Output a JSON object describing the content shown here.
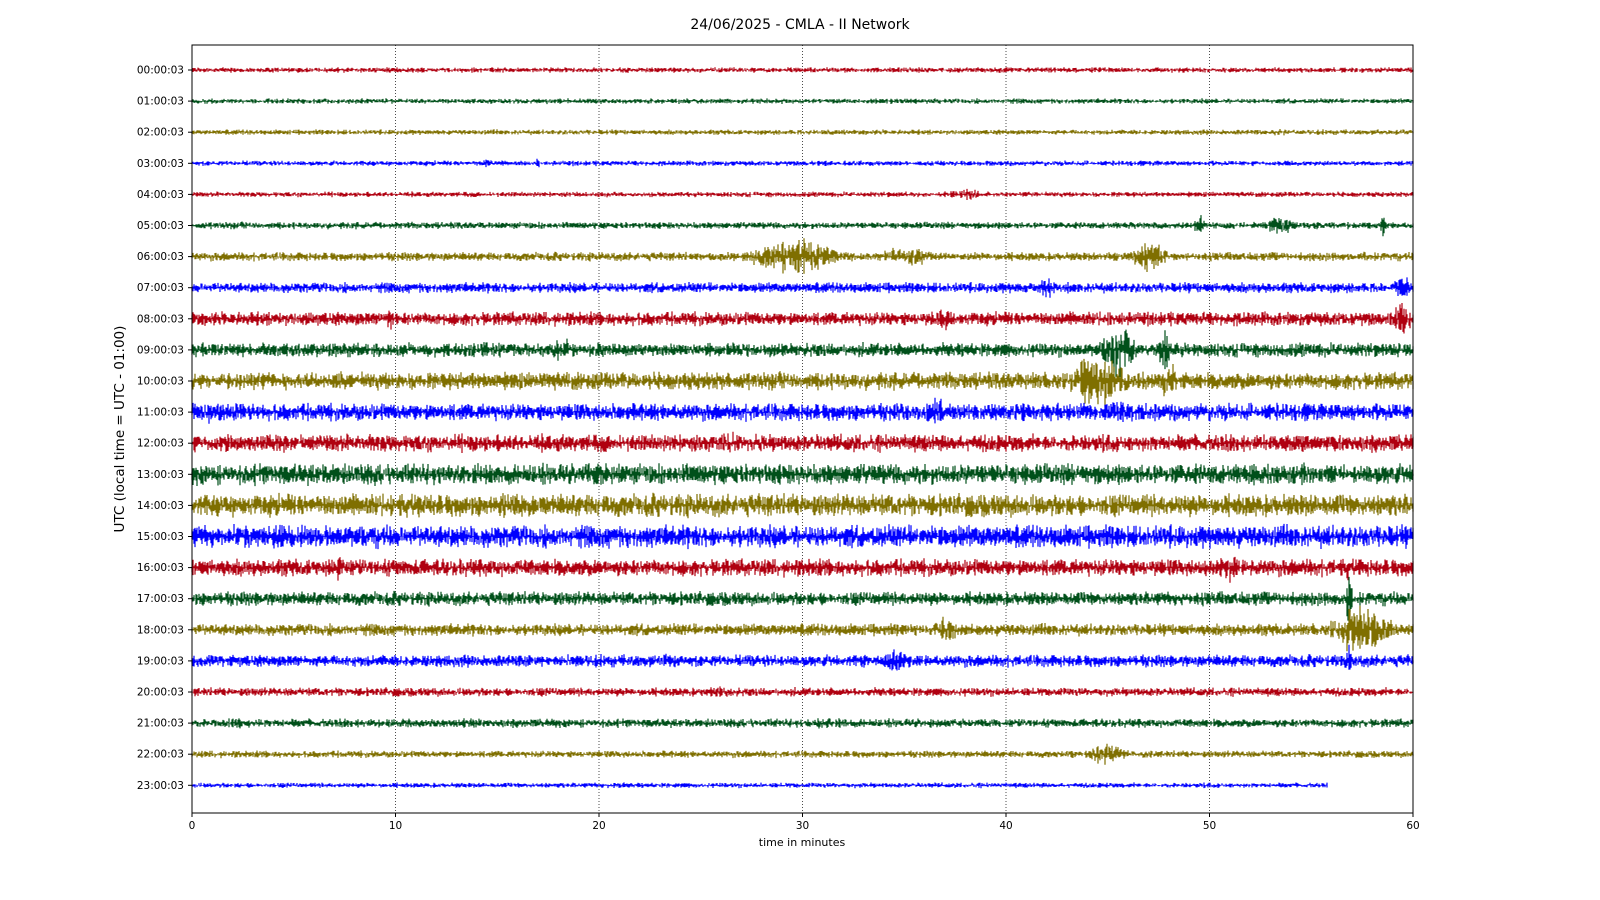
{
  "chart_data": {
    "type": "line",
    "title": "24/06/2025 - CMLA - II Network",
    "xlabel": "time in minutes",
    "ylabel": "UTC (local time = UTC - 01:00)",
    "xlim": [
      0,
      60
    ],
    "xticks": [
      0,
      10,
      20,
      30,
      40,
      50,
      60
    ],
    "grid": "vertical dotted lines at x = 10, 20, 30, 40, 50",
    "legend": "none",
    "palette": [
      "#b00010",
      "#00501a",
      "#7f6f00",
      "#0000ff"
    ],
    "series": [
      {
        "label": "00:00:03",
        "color": "#b00010",
        "amplitude": 3,
        "end_minute": 60,
        "events": []
      },
      {
        "label": "01:00:03",
        "color": "#00501a",
        "amplitude": 3,
        "end_minute": 60,
        "events": []
      },
      {
        "label": "02:00:03",
        "color": "#7f6f00",
        "amplitude": 3,
        "end_minute": 60,
        "events": [
          [
            53.5,
            5,
            0.5
          ]
        ]
      },
      {
        "label": "03:00:03",
        "color": "#0000ff",
        "amplitude": 3,
        "end_minute": 60,
        "events": [
          [
            14.5,
            8,
            0.2
          ],
          [
            17,
            6,
            0.2
          ]
        ]
      },
      {
        "label": "04:00:03",
        "color": "#b00010",
        "amplitude": 3,
        "end_minute": 60,
        "events": [
          [
            38,
            6,
            1.5
          ]
        ]
      },
      {
        "label": "05:00:03",
        "color": "#00501a",
        "amplitude": 4,
        "end_minute": 60,
        "events": [
          [
            49.5,
            14,
            0.3
          ],
          [
            53.5,
            12,
            0.8
          ],
          [
            58.5,
            16,
            0.15
          ]
        ]
      },
      {
        "label": "06:00:03",
        "color": "#7f6f00",
        "amplitude": 5,
        "end_minute": 60,
        "events": [
          [
            29.5,
            22,
            2
          ],
          [
            35,
            12,
            1.5
          ],
          [
            47,
            18,
            1
          ]
        ]
      },
      {
        "label": "07:00:03",
        "color": "#0000ff",
        "amplitude": 6,
        "end_minute": 60,
        "events": [
          [
            42,
            14,
            0.5
          ],
          [
            59.5,
            14,
            0.5
          ]
        ]
      },
      {
        "label": "08:00:03",
        "color": "#b00010",
        "amplitude": 8,
        "end_minute": 60,
        "events": [
          [
            9.7,
            16,
            0.2
          ],
          [
            37,
            20,
            0.3
          ],
          [
            59.5,
            24,
            0.4
          ]
        ]
      },
      {
        "label": "09:00:03",
        "color": "#00501a",
        "amplitude": 8,
        "end_minute": 60,
        "events": [
          [
            18,
            14,
            1
          ],
          [
            45.5,
            28,
            1
          ],
          [
            47.8,
            30,
            0.3
          ]
        ]
      },
      {
        "label": "10:00:03",
        "color": "#7f6f00",
        "amplitude": 10,
        "end_minute": 60,
        "events": [
          [
            44.5,
            30,
            1.5
          ],
          [
            48,
            26,
            0.4
          ]
        ]
      },
      {
        "label": "11:00:03",
        "color": "#0000ff",
        "amplitude": 10,
        "end_minute": 60,
        "events": [
          [
            1,
            12,
            1
          ],
          [
            36.5,
            18,
            0.7
          ],
          [
            45.5,
            14,
            1
          ]
        ]
      },
      {
        "label": "12:00:03",
        "color": "#b00010",
        "amplitude": 10,
        "end_minute": 60,
        "events": [
          [
            4,
            14,
            1
          ],
          [
            26.5,
            14,
            0.6
          ],
          [
            54.5,
            12,
            0.8
          ]
        ]
      },
      {
        "label": "13:00:03",
        "color": "#00501a",
        "amplitude": 12,
        "end_minute": 60,
        "events": [
          [
            20,
            16,
            0.4
          ],
          [
            54.5,
            14,
            1
          ]
        ]
      },
      {
        "label": "14:00:03",
        "color": "#7f6f00",
        "amplitude": 13,
        "end_minute": 60,
        "events": [
          [
            10.8,
            16,
            0.4
          ],
          [
            16,
            14,
            0.5
          ]
        ]
      },
      {
        "label": "15:00:03",
        "color": "#0000ff",
        "amplitude": 13,
        "end_minute": 60,
        "events": [
          [
            5,
            16,
            1.5
          ]
        ]
      },
      {
        "label": "16:00:03",
        "color": "#b00010",
        "amplitude": 10,
        "end_minute": 60,
        "events": [
          [
            7.2,
            16,
            0.2
          ],
          [
            51,
            16,
            0.5
          ],
          [
            56.8,
            14,
            0.2
          ]
        ]
      },
      {
        "label": "17:00:03",
        "color": "#00501a",
        "amplitude": 8,
        "end_minute": 60,
        "events": [
          [
            56.8,
            34,
            0.2
          ]
        ]
      },
      {
        "label": "18:00:03",
        "color": "#7f6f00",
        "amplitude": 7,
        "end_minute": 60,
        "events": [
          [
            37,
            14,
            0.8
          ],
          [
            56.8,
            30,
            0.2
          ],
          [
            57.5,
            28,
            1.5
          ]
        ]
      },
      {
        "label": "19:00:03",
        "color": "#0000ff",
        "amplitude": 7,
        "end_minute": 60,
        "events": [
          [
            1,
            10,
            0.5
          ],
          [
            23.3,
            12,
            0.2
          ],
          [
            34.5,
            16,
            0.7
          ],
          [
            56.8,
            20,
            0.2
          ]
        ]
      },
      {
        "label": "20:00:03",
        "color": "#b00010",
        "amplitude": 5,
        "end_minute": 60,
        "events": [
          [
            25.8,
            8,
            0.4
          ]
        ]
      },
      {
        "label": "21:00:03",
        "color": "#00501a",
        "amplitude": 5,
        "end_minute": 60,
        "events": [
          [
            2.3,
            8,
            0.5
          ],
          [
            31,
            8,
            0.5
          ]
        ]
      },
      {
        "label": "22:00:03",
        "color": "#7f6f00",
        "amplitude": 4,
        "end_minute": 60,
        "events": [
          [
            45,
            12,
            1
          ]
        ]
      },
      {
        "label": "23:00:03",
        "color": "#0000ff",
        "amplitude": 3,
        "end_minute": 55.8,
        "events": [
          [
            20.8,
            5,
            0.2
          ]
        ]
      }
    ]
  }
}
